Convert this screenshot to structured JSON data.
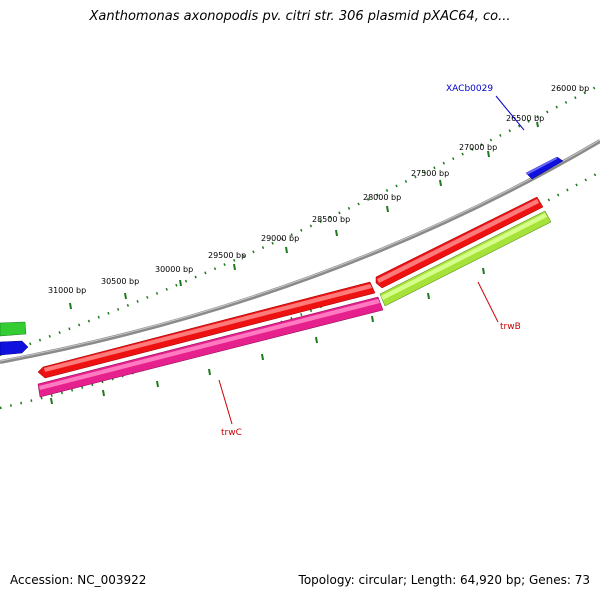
{
  "title": "Xanthomonas axonopodis pv. citri str. 306 plasmid pXAC64, co...",
  "footer": {
    "accession": "Accession: NC_003922",
    "summary": "Topology: circular; Length: 64,920 bp; Genes: 73"
  },
  "colors": {
    "backbone": "#888888",
    "tick": "#1e7a1e",
    "trwC": "#e6208c",
    "trwB": "#a6e23a",
    "red_gene": "#ee1111",
    "blue_gene": "#1111dd",
    "green_gene": "#33cc33",
    "trw_label": "#cc0000",
    "xac_label": "#0000cc"
  },
  "scale_labels": [
    "26000 bp",
    "26500 bp",
    "27000 bp",
    "27500 bp",
    "28000 bp",
    "28500 bp",
    "29000 bp",
    "29500 bp",
    "30000 bp",
    "30500 bp",
    "31000 bp"
  ],
  "gene_labels": {
    "xac": "XACb0029",
    "trwB": "trwB",
    "trwC": "trwC"
  }
}
